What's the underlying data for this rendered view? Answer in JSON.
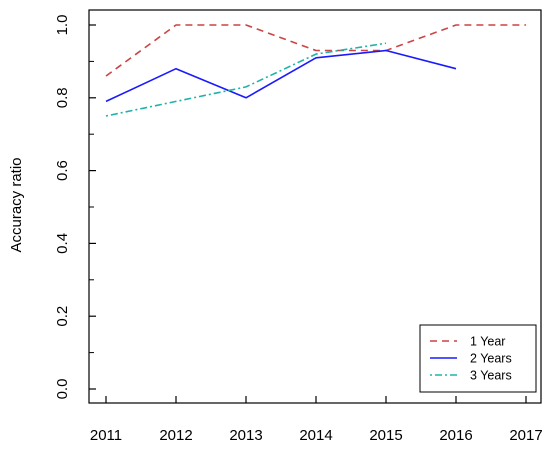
{
  "chart_data": {
    "type": "line",
    "title": "",
    "xlabel": "",
    "ylabel": "Accuracy ratio",
    "x": [
      "2011",
      "2012",
      "2013",
      "2014",
      "2015",
      "2016",
      "2017"
    ],
    "xlim": [
      2011,
      2017
    ],
    "ylim": [
      0.0,
      1.0
    ],
    "yticks": [
      "0.0",
      "0.2",
      "0.4",
      "0.6",
      "0.8",
      "1.0"
    ],
    "grid": false,
    "legend_position": "bottom-right",
    "series": [
      {
        "name": "1 Year",
        "color": "#cc4444",
        "dash": "dashed",
        "values": [
          0.86,
          1.0,
          1.0,
          0.93,
          0.93,
          1.0,
          1.0
        ]
      },
      {
        "name": "2 Years",
        "color": "#1a1aff",
        "dash": "solid",
        "values": [
          0.79,
          0.88,
          0.8,
          0.91,
          0.93,
          0.88,
          null
        ]
      },
      {
        "name": "3 Years",
        "color": "#20b2aa",
        "dash": "dotdash",
        "values": [
          0.75,
          0.79,
          0.83,
          0.92,
          0.95,
          null,
          null
        ]
      }
    ]
  }
}
